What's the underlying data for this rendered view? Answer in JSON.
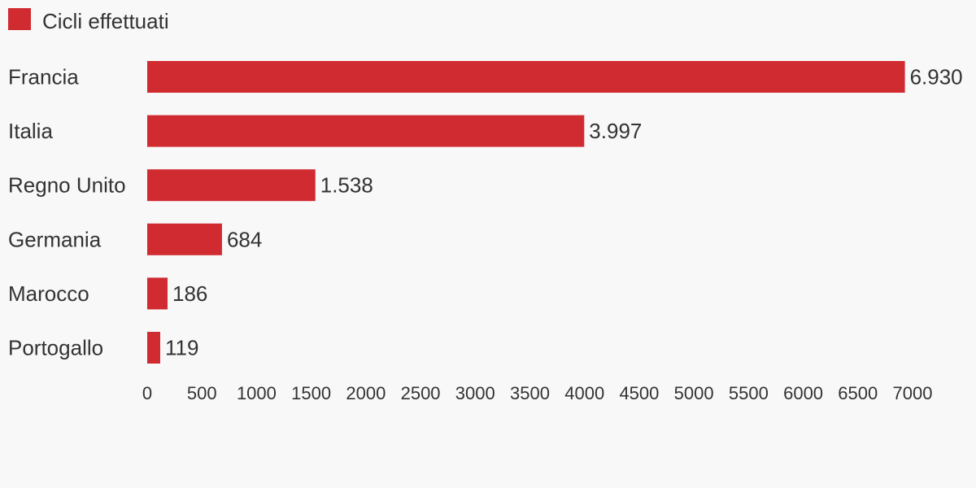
{
  "chart_data": {
    "type": "bar",
    "orientation": "horizontal",
    "categories": [
      "Francia",
      "Italia",
      "Regno Unito",
      "Germania",
      "Marocco",
      "Portogallo"
    ],
    "series": [
      {
        "name": "Cicli effettuati",
        "values": [
          6930,
          3997,
          1538,
          684,
          186,
          119
        ],
        "labels": [
          "6.930",
          "3.997",
          "1.538",
          "684",
          "186",
          "119"
        ]
      }
    ],
    "xlim": [
      0,
      7000
    ],
    "xticks": [
      0,
      500,
      1000,
      1500,
      2000,
      2500,
      3000,
      3500,
      4000,
      4500,
      5000,
      5500,
      6000,
      6500,
      7000
    ],
    "xlabel": "",
    "ylabel": "",
    "grid": false,
    "legend_position": "top-left",
    "colors": {
      "bar": "#d12b32",
      "text": "#333333",
      "background": "#f8f8f8"
    }
  }
}
